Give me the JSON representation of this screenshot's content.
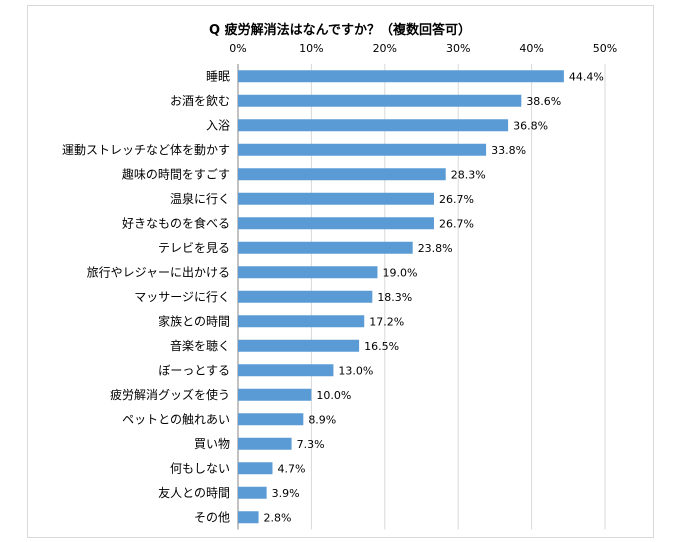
{
  "chart_data": {
    "type": "bar",
    "orientation": "horizontal",
    "title": "Q 疲労解消法はなんですか？（複数回答可）",
    "xlabel": "",
    "ylabel": "",
    "xlim": [
      0,
      50
    ],
    "ticks": [
      "0%",
      "10%",
      "20%",
      "30%",
      "40%",
      "50%"
    ],
    "tick_values": [
      0,
      10,
      20,
      30,
      40,
      50
    ],
    "grid": true,
    "legend": "none",
    "bar_color": "#5b9bd5",
    "categories": [
      "睡眠",
      "お酒を飲む",
      "入浴",
      "運動ストレッチなど体を動かす",
      "趣味の時間をすごす",
      "温泉に行く",
      "好きなものを食べる",
      "テレビを見る",
      "旅行やレジャーに出かける",
      "マッサージに行く",
      "家族との時間",
      "音楽を聴く",
      "ぼーっとする",
      "疲労解消グッズを使う",
      "ペットとの触れあい",
      "買い物",
      "何もしない",
      "友人との時間",
      "その他"
    ],
    "values": [
      44.4,
      38.6,
      36.8,
      33.8,
      28.3,
      26.7,
      26.7,
      23.8,
      19.0,
      18.3,
      17.2,
      16.5,
      13.0,
      10.0,
      8.9,
      7.3,
      4.7,
      3.9,
      2.8
    ],
    "data_labels": [
      "44.4%",
      "38.6%",
      "36.8%",
      "33.8%",
      "28.3%",
      "26.7%",
      "26.7%",
      "23.8%",
      "19.0%",
      "18.3%",
      "17.2%",
      "16.5%",
      "13.0%",
      "10.0%",
      "8.9%",
      "7.3%",
      "4.7%",
      "3.9%",
      "2.8%"
    ]
  }
}
